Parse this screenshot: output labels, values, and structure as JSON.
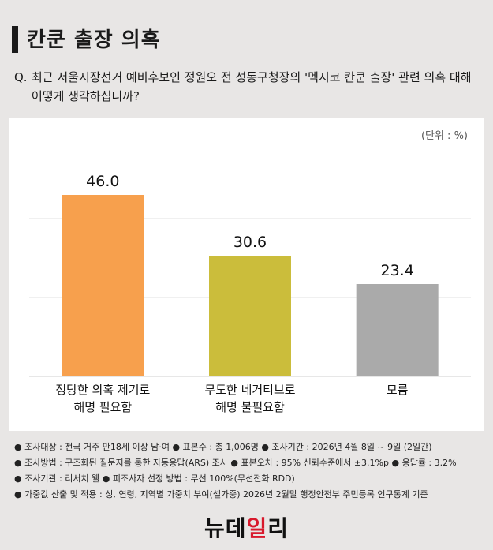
{
  "header": {
    "title": "칸쿤 출장 의혹",
    "question_prefix": "Q.",
    "question_text": "최근 서울시장선거 예비후보인 정원오 전 성동구청장의 '멕시코 칸쿤 출장' 관련 의혹 대해 어떻게 생각하십니까?"
  },
  "chart_data": {
    "type": "bar",
    "unit_label": "(단위 : %)",
    "categories": [
      [
        "정당한 의혹 제기로",
        "해명 필요함"
      ],
      [
        "무도한 네거티브로",
        "해명 불필요함"
      ],
      [
        "모름"
      ]
    ],
    "values": [
      46.0,
      30.6,
      23.4
    ],
    "value_labels": [
      "46.0",
      "30.6",
      "23.4"
    ],
    "colors": [
      "#f7a04d",
      "#cbbd3b",
      "#aaaaaa"
    ],
    "ylim": [
      0,
      60
    ],
    "gridlines": [
      20,
      40
    ],
    "grid": true
  },
  "footnotes": [
    "● 조사대상 : 전국 거주 만18세 이상 남·여  ● 표본수 : 총 1,006명  ● 조사기간 : 2026년 4월 8일 ~ 9일 (2일간)",
    "● 조사방법 : 구조화된 질문지를 통한 자동응답(ARS) 조사  ● 표본오차 : 95% 신뢰수준에서 ±3.1%p  ● 응답률 : 3.2%",
    "● 조사기관 : 리서치 웰  ● 피조사자 선정 방법 : 무선 100%(무선전화 RDD)",
    "● 가중값 산출 및 적용 : 성, 연령, 지역별 가중치 부여(셀가중) 2026년 2월말 행정안전부 주민등록 인구통계 기준"
  ],
  "logo": {
    "part1": "뉴데",
    "part2": "일",
    "part3": "리"
  }
}
